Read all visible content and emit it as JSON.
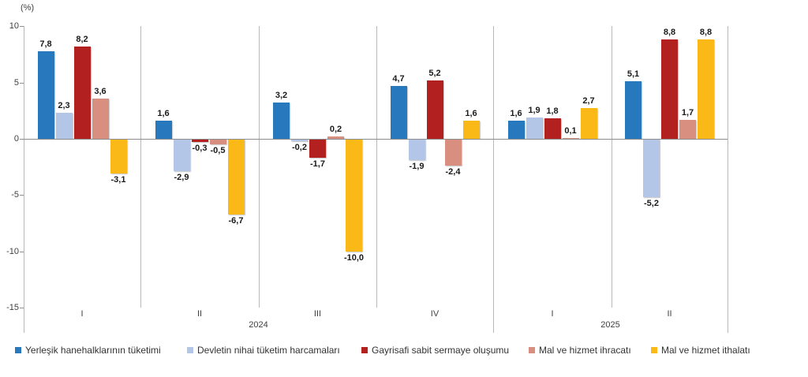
{
  "chart_data": {
    "type": "bar",
    "unit_label": "(%)",
    "ylim": [
      -15,
      10
    ],
    "yticks": [
      "10",
      "5",
      "0",
      "-5",
      "-10",
      "-15"
    ],
    "ytick_values": [
      10,
      5,
      0,
      -5,
      -10,
      -15
    ],
    "grid": false,
    "legend_position": "bottom",
    "categories": [
      "I",
      "II",
      "III",
      "IV",
      "I",
      "II"
    ],
    "year_spans": [
      {
        "label": "2024",
        "from": 0,
        "to": 3
      },
      {
        "label": "2025",
        "from": 4,
        "to": 5
      }
    ],
    "series": [
      {
        "name": "Yerleşik hanehalklarının tüketimi",
        "color": "#2878BE",
        "values": [
          7.8,
          1.6,
          3.2,
          4.7,
          1.6,
          5.1
        ],
        "labels": [
          "7,8",
          "1,6",
          "3,2",
          "4,7",
          "1,6",
          "5,1"
        ]
      },
      {
        "name": "Devletin nihai tüketim harcamaları",
        "color": "#B3C6E8",
        "values": [
          2.3,
          -2.9,
          -0.2,
          -1.9,
          1.9,
          -5.2
        ],
        "labels": [
          "2,3",
          "-2,9",
          "-0,2",
          "-1,9",
          "1,9",
          "-5,2"
        ]
      },
      {
        "name": "Gayrisafi sabit sermaye oluşumu",
        "color": "#B22020",
        "values": [
          8.2,
          -0.3,
          -1.7,
          5.2,
          1.8,
          8.8
        ],
        "labels": [
          "8,2",
          "-0,3",
          "-1,7",
          "5,2",
          "1,8",
          "8,8"
        ]
      },
      {
        "name": "Mal ve hizmet ihracatı",
        "color": "#D98F80",
        "values": [
          3.6,
          -0.5,
          0.2,
          -2.4,
          0.1,
          1.7
        ],
        "labels": [
          "3,6",
          "-0,5",
          "0,2",
          "-2,4",
          "0,1",
          "1,7"
        ]
      },
      {
        "name": "Mal ve hizmet ithalatı",
        "color": "#FBB917",
        "values": [
          -3.1,
          -6.7,
          -10.0,
          1.6,
          2.7,
          8.8
        ],
        "labels": [
          "-3,1",
          "-6,7",
          "-10,0",
          "1,6",
          "2,7",
          "8,8"
        ]
      }
    ]
  }
}
